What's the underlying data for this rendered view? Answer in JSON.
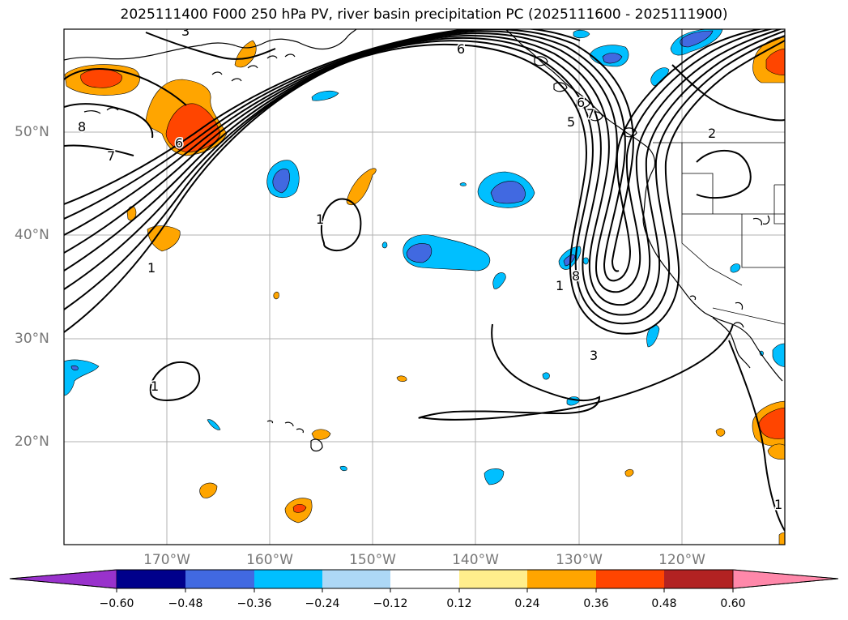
{
  "title": "2025111400 F000 250 hPa PV, river basin precipitation PC (2025111600 - 2025111900)",
  "map": {
    "lat_labels": [
      "50°N",
      "40°N",
      "30°N",
      "20°N"
    ],
    "lon_labels": [
      "170°W",
      "160°W",
      "150°W",
      "140°W",
      "130°W",
      "120°W"
    ],
    "contour_labels": [
      "3",
      "6",
      "8",
      "7",
      "6",
      "1",
      "1",
      "5",
      "6",
      "7",
      "2",
      "8",
      "1",
      "3",
      "1",
      "1"
    ],
    "colors": {
      "orange": "#ffa500",
      "red_orange": "#ff4500",
      "sky": "#00bfff",
      "royal": "#4169e1",
      "contour": "#000000",
      "grid": "#b0b0b0"
    }
  },
  "colorbar": {
    "colors": [
      "#9932cc",
      "#00008b",
      "#4169e1",
      "#00bfff",
      "#add8f6",
      "#ffffff",
      "#ffee8c",
      "#ffa500",
      "#ff4500",
      "#b22222",
      "#ff88aa"
    ],
    "tick_labels": [
      "−0.60",
      "−0.48",
      "−0.36",
      "−0.24",
      "−0.12",
      "0.12",
      "0.24",
      "0.36",
      "0.48",
      "0.60"
    ]
  }
}
